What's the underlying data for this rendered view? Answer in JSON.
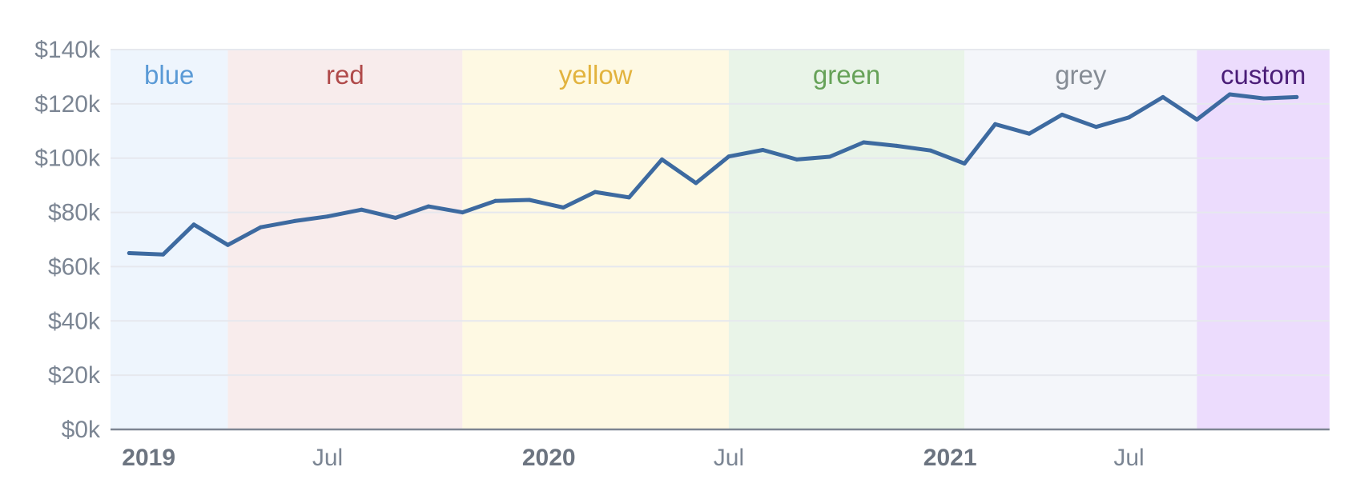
{
  "chart_data": {
    "type": "line",
    "title": "",
    "xlabel": "",
    "ylabel": "",
    "x": [
      "2019-01",
      "2019-02",
      "2019-03",
      "2019-04",
      "2019-05",
      "2019-06",
      "2019-07",
      "2019-08",
      "2019-09",
      "2019-10",
      "2019-11",
      "2019-12",
      "2020-01",
      "2020-02",
      "2020-03",
      "2020-04",
      "2020-05",
      "2020-06",
      "2020-07",
      "2020-08",
      "2020-09",
      "2020-10",
      "2020-11",
      "2020-12",
      "2021-01",
      "2021-02",
      "2021-03",
      "2021-04",
      "2021-05",
      "2021-06",
      "2021-07",
      "2021-08",
      "2021-09",
      "2021-10",
      "2021-11",
      "2021-12"
    ],
    "series": [
      {
        "values": [
          65000,
          64500,
          75500,
          68000,
          74500,
          76800,
          78500,
          81000,
          78000,
          82200,
          80000,
          84200,
          84600,
          81800,
          87500,
          85500,
          99500,
          90800,
          100600,
          103000,
          99500,
          100500,
          105800,
          104500,
          102800,
          98000,
          112500,
          109000,
          116000,
          111500,
          115000,
          122500,
          114200,
          123500,
          122000,
          122500
        ],
        "color": "#3d6aa0"
      }
    ],
    "ylim": [
      0,
      140000
    ],
    "yticks": [
      0,
      20000,
      40000,
      60000,
      80000,
      100000,
      120000,
      140000
    ],
    "ytick_labels": [
      "$0k",
      "$20k",
      "$40k",
      "$60k",
      "$80k",
      "$100k",
      "$120k",
      "$140k"
    ],
    "xlim": [
      "2018-12-15",
      "2021-12-31"
    ],
    "xticks": [
      {
        "date": "2019-01-01",
        "label": "2019",
        "major": true
      },
      {
        "date": "2019-07-01",
        "label": "Jul",
        "major": false
      },
      {
        "date": "2020-01-01",
        "label": "2020",
        "major": true
      },
      {
        "date": "2020-07-01",
        "label": "Jul",
        "major": false
      },
      {
        "date": "2021-01-01",
        "label": "2021",
        "major": true
      },
      {
        "date": "2021-07-01",
        "label": "Jul",
        "major": false
      }
    ],
    "bands": [
      {
        "label": "blue",
        "start": "2018-12-15",
        "end": "2019-04-01",
        "fill": "#eef5fd",
        "text_color": "#5a9ad6"
      },
      {
        "label": "red",
        "start": "2019-04-01",
        "end": "2019-11-01",
        "fill": "#f8ecec",
        "text_color": "#b04a4a"
      },
      {
        "label": "yellow",
        "start": "2019-11-01",
        "end": "2020-07-01",
        "fill": "#fef9e3",
        "text_color": "#e2b33e"
      },
      {
        "label": "green",
        "start": "2020-07-01",
        "end": "2021-02-01",
        "fill": "#e9f4e8",
        "text_color": "#66a258"
      },
      {
        "label": "grey",
        "start": "2021-02-01",
        "end": "2021-09-01",
        "fill": "#f4f6fa",
        "text_color": "#858c95"
      },
      {
        "label": "custom",
        "start": "2021-09-01",
        "end": "2021-12-31",
        "fill": "#ecdcfd",
        "text_color": "#4b1e78"
      }
    ],
    "grid": true
  }
}
